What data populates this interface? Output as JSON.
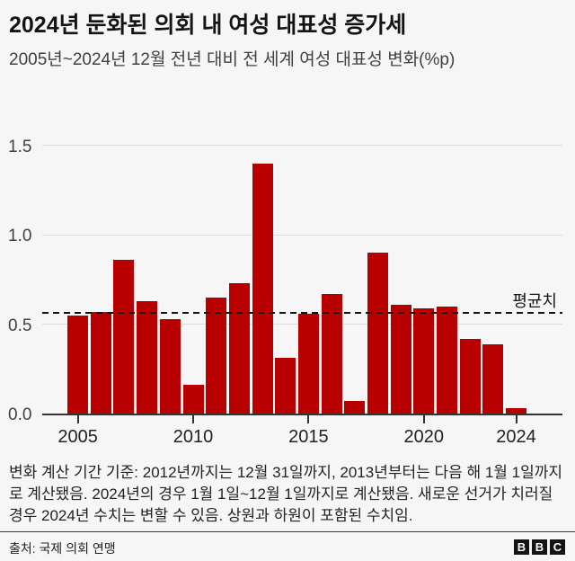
{
  "header": {
    "title": "2024년 둔화된 의회 내 여성 대표성 증가세",
    "subtitle": "2005년~2024년 12월 전년 대비 전 세계 여성 대표성 변화(%p)"
  },
  "chart_data": {
    "type": "bar",
    "title": "2024년 둔화된 의회 내 여성 대표성 증가세",
    "subtitle": "2005년~2024년 12월 전년 대비 전 세계 여성 대표성 변화(%p)",
    "categories": [
      2005,
      2006,
      2007,
      2008,
      2009,
      2010,
      2011,
      2012,
      2013,
      2014,
      2015,
      2016,
      2017,
      2018,
      2019,
      2020,
      2021,
      2022,
      2023,
      2024
    ],
    "values": [
      0.55,
      0.57,
      0.86,
      0.63,
      0.53,
      0.16,
      0.65,
      0.73,
      1.4,
      0.31,
      0.56,
      0.67,
      0.07,
      0.9,
      0.61,
      0.59,
      0.6,
      0.42,
      0.39,
      0.03
    ],
    "average_line": {
      "value": 0.56,
      "label": "평균치"
    },
    "y_axis": {
      "tick_values": [
        0.0,
        0.5,
        1.0,
        1.5
      ],
      "tick_labels": [
        "0.0",
        "0.5",
        "1.0",
        "1.5"
      ],
      "range": [
        0,
        1.575
      ]
    },
    "x_axis": {
      "tick_years": [
        2005,
        2010,
        2015,
        2020,
        2024
      ],
      "tick_labels": [
        "2005",
        "2010",
        "2015",
        "2020",
        "2024"
      ]
    },
    "grid": true,
    "legend": "none",
    "xlabel": "",
    "ylabel": ""
  },
  "footnote": "변화 계산 기간 기준: 2012년까지는 12월 31일까지, 2013년부터는 다음 해 1월 1일까지로 계산됐음. 2024년의 경우 1월 1일~12월 1일까지로 계산됐음. 새로운 선거가 치러질 경우 2024년 수치는 변할 수 있음. 상원과 하원이 포함된 수치임.",
  "source": {
    "label": "출처: 국제 의회 연맹"
  },
  "logo": {
    "name": "BBC",
    "letters": [
      "B",
      "B",
      "C"
    ]
  },
  "colors": {
    "bar": "#b80000",
    "background": "#f6f6f6",
    "grid": "#dcdcdc",
    "axis": "#333333",
    "average_line": "#141414",
    "text_primary": "#141414",
    "text_secondary": "#404040"
  }
}
